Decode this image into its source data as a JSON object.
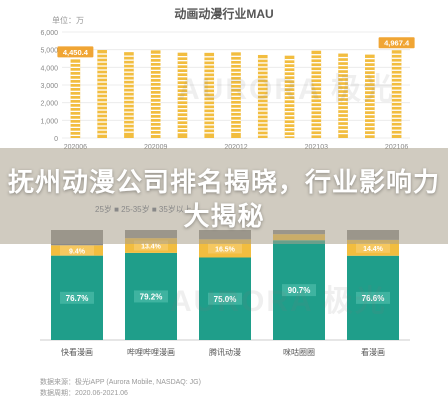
{
  "chart_data": [
    {
      "type": "bar",
      "title": "动画动漫行业MAU",
      "unit_label": "单位：万",
      "ylim": [
        0,
        6000
      ],
      "y_ticks": [
        "0",
        "1,000",
        "2,000",
        "3,000",
        "4,000",
        "5,000",
        "6,000"
      ],
      "categories": [
        "202006",
        "",
        "",
        "202009",
        "",
        "",
        "202012",
        "",
        "",
        "202103",
        "",
        "",
        "202106"
      ],
      "values": [
        4450.4,
        4980,
        4860,
        4960,
        4830,
        4820,
        4850,
        4700,
        4660,
        4940,
        4780,
        4720,
        4967.4
      ],
      "data_labels": [
        "4,450.4",
        "",
        "",
        "",
        "",
        "",
        "",
        "",
        "",
        "",
        "",
        "",
        "4,967.4"
      ],
      "color": "#f2bd3f",
      "label_bg": "#f0a534"
    },
    {
      "type": "bar",
      "stacked": true,
      "legend_text": "25岁  ■ 25-35岁  ■ 35岁以上",
      "categories": [
        "快看漫画",
        "哔哩哔哩漫画",
        "腾讯动漫",
        "咪咕圈圈",
        "看漫画"
      ],
      "series": [
        {
          "name": "",
          "values": [
            76.7,
            79.2,
            75.0,
            90.7,
            76.6
          ],
          "labels": [
            "76.7%",
            "79.2%",
            "75.0%",
            "90.7%",
            "76.6%"
          ],
          "color": "#1f9e8a"
        },
        {
          "name": "",
          "values": [
            9.4,
            13.4,
            16.5,
            5.5,
            14.4
          ],
          "labels": [
            "9.4%",
            "13.4%",
            "16.5%",
            "",
            "14.4%"
          ],
          "color": "#f2bd3f"
        },
        {
          "name": "",
          "values": [
            13.9,
            7.4,
            8.5,
            3.8,
            9.0
          ],
          "labels": [
            "",
            "",
            "",
            "",
            ""
          ],
          "color": "#8a8a8a"
        }
      ]
    }
  ],
  "headline": "抚州动漫公司排名揭晓，行业影响力大揭秘",
  "source_line1": "数据来源：极光iAPP (Aurora Mobile, NASDAQ: JG)",
  "source_line2": "数据周期：2020.06-2021.06",
  "watermark_text": "AURORA 极光"
}
